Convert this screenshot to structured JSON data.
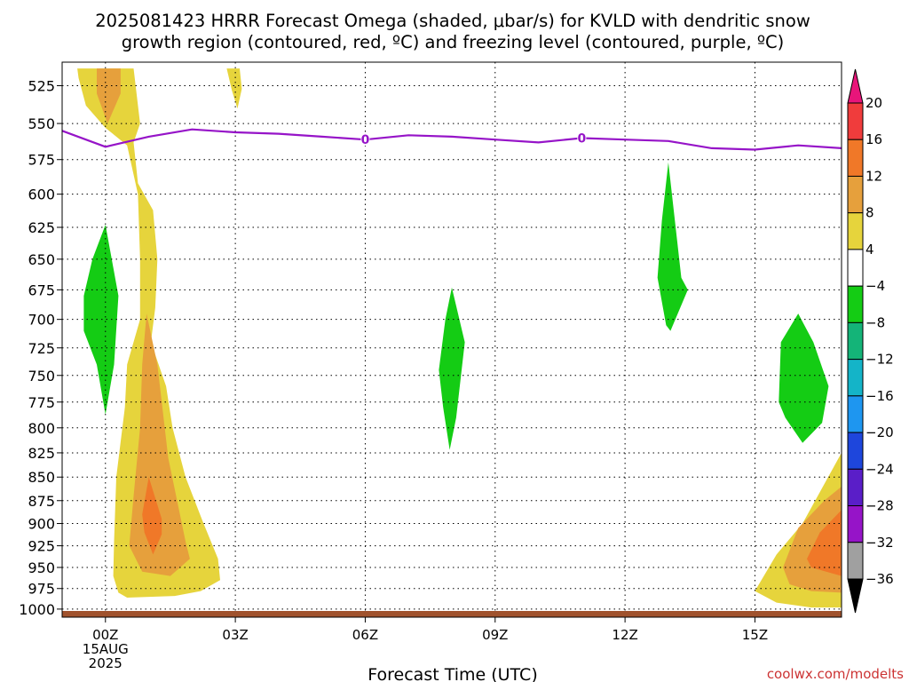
{
  "chart_data": {
    "type": "heatmap",
    "title_lines": [
      "2025081423 HRRR Forecast Omega (shaded, μbar/s) for KVLD with dendritic snow",
      "growth region (contoured, red, ºC) and freezing level (contoured, purple, ºC)"
    ],
    "xlabel": "Forecast Time (UTC)",
    "ylabel": "",
    "x_ticks": [
      {
        "hour": 0,
        "label": "00Z"
      },
      {
        "hour": 3,
        "label": "03Z"
      },
      {
        "hour": 6,
        "label": "06Z"
      },
      {
        "hour": 9,
        "label": "09Z"
      },
      {
        "hour": 12,
        "label": "12Z"
      },
      {
        "hour": 15,
        "label": "15Z"
      }
    ],
    "x_date_labels": [
      "15AUG",
      "2025"
    ],
    "xlim_hours": [
      -1,
      17
    ],
    "y_ticks": [
      525,
      550,
      575,
      600,
      625,
      650,
      675,
      700,
      725,
      750,
      775,
      800,
      825,
      850,
      875,
      900,
      925,
      950,
      975,
      1000
    ],
    "ylim_hpa": [
      510,
      1010
    ],
    "y_scale": "log-pressure",
    "grid": "dotted",
    "colorbar": {
      "labels": [
        "20",
        "16",
        "12",
        "8",
        "4",
        "−4",
        "−8",
        "−12",
        "−16",
        "−20",
        "−24",
        "−28",
        "−32",
        "−36"
      ],
      "colors": [
        "#e8157a",
        "#f03c3c",
        "#f07828",
        "#e6a03c",
        "#e6d43c",
        "#ffffff",
        "#14cc14",
        "#14b478",
        "#14b4c8",
        "#1e96f0",
        "#1e46dc",
        "#5a1ec8",
        "#9614c8",
        "#a0a0a0",
        "#000000"
      ]
    },
    "freezing_level": {
      "color": "#9614c8",
      "contour_label": "0",
      "label_hours": [
        6,
        11
      ],
      "points": [
        [
          -1,
          555
        ],
        [
          0,
          566
        ],
        [
          1,
          559
        ],
        [
          2,
          554
        ],
        [
          3,
          556
        ],
        [
          4,
          557
        ],
        [
          5,
          559
        ],
        [
          6,
          561
        ],
        [
          7,
          558
        ],
        [
          8,
          559
        ],
        [
          9,
          561
        ],
        [
          10,
          563
        ],
        [
          11,
          560
        ],
        [
          12,
          561
        ],
        [
          13,
          562
        ],
        [
          14,
          567
        ],
        [
          15,
          568
        ],
        [
          16,
          565
        ],
        [
          17,
          567
        ]
      ]
    },
    "ground": {
      "color": "#a0522d",
      "pressure_hpa": 1010
    },
    "shaded_regions": [
      {
        "level": "4",
        "color": "#e6d43c",
        "points": [
          [
            -0.65,
            514
          ],
          [
            0.65,
            514
          ],
          [
            0.8,
            550
          ],
          [
            0.65,
            563
          ],
          [
            0.75,
            592
          ],
          [
            1.1,
            612
          ],
          [
            1.2,
            650
          ],
          [
            1.15,
            690
          ],
          [
            1.05,
            720
          ],
          [
            1.4,
            760
          ],
          [
            1.55,
            800
          ],
          [
            1.85,
            850
          ],
          [
            2.25,
            898
          ],
          [
            2.6,
            940
          ],
          [
            2.65,
            965
          ],
          [
            2.2,
            978
          ],
          [
            1.6,
            984
          ],
          [
            0.5,
            986
          ],
          [
            0.3,
            980
          ],
          [
            0.18,
            960
          ],
          [
            0.2,
            920
          ],
          [
            0.25,
            850
          ],
          [
            0.45,
            780
          ],
          [
            0.5,
            740
          ],
          [
            0.8,
            700
          ],
          [
            0.8,
            650
          ],
          [
            0.75,
            600
          ],
          [
            0.5,
            565
          ],
          [
            0,
            553
          ],
          [
            -0.45,
            538
          ],
          [
            -0.62,
            520
          ]
        ]
      },
      {
        "level": "4",
        "color": "#e6d43c",
        "points": [
          [
            2.8,
            514
          ],
          [
            3.1,
            514
          ],
          [
            3.15,
            527
          ],
          [
            3.05,
            540
          ],
          [
            2.92,
            528
          ]
        ]
      },
      {
        "level": "4",
        "color": "#e6d43c",
        "points": [
          [
            15,
            978
          ],
          [
            15.5,
            935
          ],
          [
            16.1,
            900
          ],
          [
            17,
            825
          ],
          [
            17,
            998
          ],
          [
            16.3,
            998
          ],
          [
            15.5,
            992
          ]
        ]
      },
      {
        "level": "8",
        "color": "#e6a03c",
        "points": [
          [
            -0.2,
            514
          ],
          [
            0.35,
            514
          ],
          [
            0.35,
            530
          ],
          [
            0.05,
            550
          ],
          [
            -0.2,
            530
          ]
        ]
      },
      {
        "level": "8",
        "color": "#e6a03c",
        "points": [
          [
            0.95,
            695
          ],
          [
            1.2,
            740
          ],
          [
            1.45,
            830
          ],
          [
            1.85,
            920
          ],
          [
            1.95,
            940
          ],
          [
            1.5,
            960
          ],
          [
            0.85,
            955
          ],
          [
            0.55,
            925
          ],
          [
            0.65,
            870
          ],
          [
            0.8,
            800
          ],
          [
            0.85,
            740
          ]
        ]
      },
      {
        "level": "8",
        "color": "#e6a03c",
        "points": [
          [
            15.65,
            950
          ],
          [
            16,
            905
          ],
          [
            16.6,
            875
          ],
          [
            17,
            860
          ],
          [
            17,
            980
          ],
          [
            16.3,
            978
          ],
          [
            15.8,
            970
          ]
        ]
      },
      {
        "level": "12",
        "color": "#f07828",
        "points": [
          [
            1.0,
            850
          ],
          [
            1.3,
            895
          ],
          [
            1.3,
            912
          ],
          [
            1.1,
            935
          ],
          [
            0.9,
            910
          ],
          [
            0.85,
            890
          ]
        ]
      },
      {
        "level": "12",
        "color": "#f07828",
        "points": [
          [
            16.5,
            910
          ],
          [
            17,
            885
          ],
          [
            17,
            960
          ],
          [
            16.3,
            950
          ],
          [
            16.2,
            940
          ]
        ]
      },
      {
        "level": "-4",
        "color": "#14cc14",
        "points": [
          [
            0,
            623
          ],
          [
            0.3,
            680
          ],
          [
            0.2,
            740
          ],
          [
            0,
            787
          ],
          [
            -0.2,
            740
          ],
          [
            -0.5,
            710
          ],
          [
            -0.5,
            680
          ],
          [
            -0.3,
            650
          ]
        ]
      },
      {
        "level": "-4",
        "color": "#14cc14",
        "points": [
          [
            8,
            673
          ],
          [
            8.3,
            720
          ],
          [
            8.1,
            790
          ],
          [
            7.95,
            822
          ],
          [
            7.8,
            780
          ],
          [
            7.7,
            745
          ],
          [
            7.85,
            700
          ]
        ]
      },
      {
        "level": "-4",
        "color": "#14cc14",
        "points": [
          [
            13,
            577
          ],
          [
            13.3,
            665
          ],
          [
            13.45,
            675
          ],
          [
            13.05,
            710
          ],
          [
            12.95,
            705
          ],
          [
            12.75,
            665
          ],
          [
            12.85,
            620
          ]
        ]
      },
      {
        "level": "-4",
        "color": "#14cc14",
        "points": [
          [
            16,
            695
          ],
          [
            16.35,
            720
          ],
          [
            16.7,
            760
          ],
          [
            16.55,
            795
          ],
          [
            16.1,
            815
          ],
          [
            15.7,
            790
          ],
          [
            15.55,
            775
          ],
          [
            15.6,
            720
          ]
        ]
      }
    ]
  },
  "watermark": "coolwx.com/modelts"
}
